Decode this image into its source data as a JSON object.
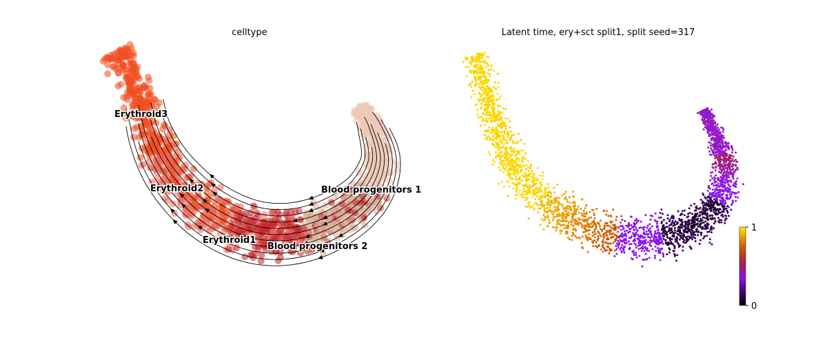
{
  "chart_data": [
    {
      "type": "scatter",
      "title": "celltype",
      "overlay": "velocity streamlines with arrowheads",
      "axes": "hidden",
      "legend": "labels on data",
      "categories": [
        {
          "name": "Erythroid3",
          "color": "#f04e23"
        },
        {
          "name": "Erythroid2",
          "color": "#ee6a5a"
        },
        {
          "name": "Erythroid1",
          "color": "#c6242b"
        },
        {
          "name": "Blood progenitors 2",
          "color": "#dbb09b"
        },
        {
          "name": "Blood progenitors 1",
          "color": "#edcbb8"
        }
      ]
    },
    {
      "type": "scatter",
      "title": "Latent time, ery+sct split1, split seed=317",
      "axes": "hidden",
      "colormap": "gnuplot",
      "colorbar": {
        "min": 0,
        "max": 1,
        "ticks": [
          "0",
          "1"
        ],
        "position": "right"
      }
    }
  ]
}
